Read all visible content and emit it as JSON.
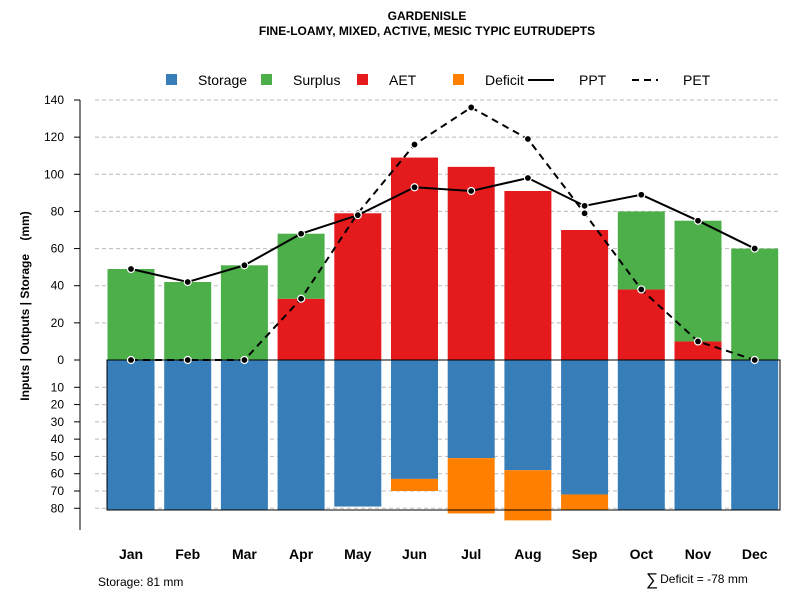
{
  "chart_data": {
    "type": "bar",
    "title": "GARDENISLE",
    "subtitle": "FINE-LOAMY, MIXED, ACTIVE, MESIC TYPIC EUTRUDEPTS",
    "ylabel": "Inputs | Outputs | Storage    (mm)",
    "xlabel": "",
    "categories": [
      "Jan",
      "Feb",
      "Mar",
      "Apr",
      "May",
      "Jun",
      "Jul",
      "Aug",
      "Sep",
      "Oct",
      "Nov",
      "Dec"
    ],
    "upper_ylim": [
      0,
      140
    ],
    "upper_ticks": [
      0,
      20,
      40,
      60,
      80,
      100,
      120,
      140
    ],
    "lower_ylim": [
      0,
      81
    ],
    "lower_ticks": [
      10,
      20,
      30,
      40,
      50,
      60,
      70,
      80
    ],
    "grid": true,
    "legend_position": "top",
    "legend": [
      {
        "key": "storage",
        "label": "Storage",
        "kind": "box"
      },
      {
        "key": "surplus",
        "label": "Surplus",
        "kind": "box"
      },
      {
        "key": "aet",
        "label": "AET",
        "kind": "box"
      },
      {
        "key": "deficit",
        "label": "Deficit",
        "kind": "box"
      },
      {
        "key": "ppt",
        "label": "PPT",
        "kind": "solid"
      },
      {
        "key": "pet",
        "label": "PET",
        "kind": "dashed"
      }
    ],
    "series": [
      {
        "name": "AET",
        "key": "aet",
        "values": [
          0,
          0,
          0,
          33,
          79,
          109,
          104,
          91,
          70,
          38,
          10,
          0
        ]
      },
      {
        "name": "Surplus",
        "key": "surplus",
        "values": [
          49,
          42,
          51,
          35,
          0,
          0,
          0,
          0,
          0,
          42,
          65,
          60
        ]
      },
      {
        "name": "Storage",
        "key": "storage",
        "values": [
          81,
          81,
          81,
          81,
          79,
          63,
          51,
          58,
          72,
          81,
          81,
          81
        ]
      },
      {
        "name": "Deficit",
        "key": "deficit",
        "values": [
          0,
          0,
          0,
          0,
          0,
          7,
          32,
          29,
          9,
          0,
          0,
          0
        ]
      },
      {
        "name": "PPT",
        "key": "ppt",
        "values": [
          49,
          42,
          51,
          68,
          78,
          93,
          91,
          98,
          83,
          89,
          75,
          60
        ]
      },
      {
        "name": "PET",
        "key": "pet",
        "values": [
          0,
          0,
          0,
          33,
          79,
          116,
          136,
          119,
          79,
          38,
          10,
          0
        ]
      }
    ],
    "colors": {
      "storage": "#377EB8",
      "surplus": "#4DAF4A",
      "aet": "#E41A1C",
      "deficit": "#FF7F00",
      "line": "#000000",
      "grid": "#bbbbbb"
    }
  },
  "footer": {
    "storage_note": "Storage: 81 mm",
    "deficit_note": "Deficit = -78 mm"
  }
}
